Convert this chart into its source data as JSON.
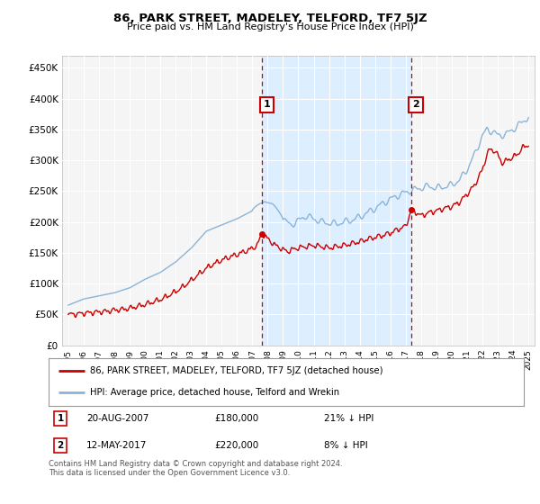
{
  "title": "86, PARK STREET, MADELEY, TELFORD, TF7 5JZ",
  "subtitle": "Price paid vs. HM Land Registry's House Price Index (HPI)",
  "legend_label_red": "86, PARK STREET, MADELEY, TELFORD, TF7 5JZ (detached house)",
  "legend_label_blue": "HPI: Average price, detached house, Telford and Wrekin",
  "annotation1_date": "20-AUG-2007",
  "annotation1_price": "£180,000",
  "annotation1_hpi": "21% ↓ HPI",
  "annotation1_year": 2007.64,
  "annotation1_value": 180000,
  "annotation2_date": "12-MAY-2017",
  "annotation2_price": "£220,000",
  "annotation2_hpi": "8% ↓ HPI",
  "annotation2_year": 2017.37,
  "annotation2_value": 220000,
  "footer": "Contains HM Land Registry data © Crown copyright and database right 2024.\nThis data is licensed under the Open Government Licence v3.0.",
  "ylim": [
    0,
    470000
  ],
  "xlim_start": 1994.6,
  "xlim_end": 2025.4,
  "yticks": [
    0,
    50000,
    100000,
    150000,
    200000,
    250000,
    300000,
    350000,
    400000,
    450000
  ],
  "ytick_labels": [
    "£0",
    "£50K",
    "£100K",
    "£150K",
    "£200K",
    "£250K",
    "£300K",
    "£350K",
    "£400K",
    "£450K"
  ],
  "xticks": [
    1995,
    1996,
    1997,
    1998,
    1999,
    2000,
    2001,
    2002,
    2003,
    2004,
    2005,
    2006,
    2007,
    2008,
    2009,
    2010,
    2011,
    2012,
    2013,
    2014,
    2015,
    2016,
    2017,
    2018,
    2019,
    2020,
    2021,
    2022,
    2023,
    2024,
    2025
  ],
  "red_color": "#cc0000",
  "blue_color": "#89b4d9",
  "highlight_color": "#ddeeff",
  "vline_color": "#cc0000",
  "background_color": "#ffffff",
  "plot_bg_color": "#f5f5f5",
  "grid_color": "#ffffff"
}
